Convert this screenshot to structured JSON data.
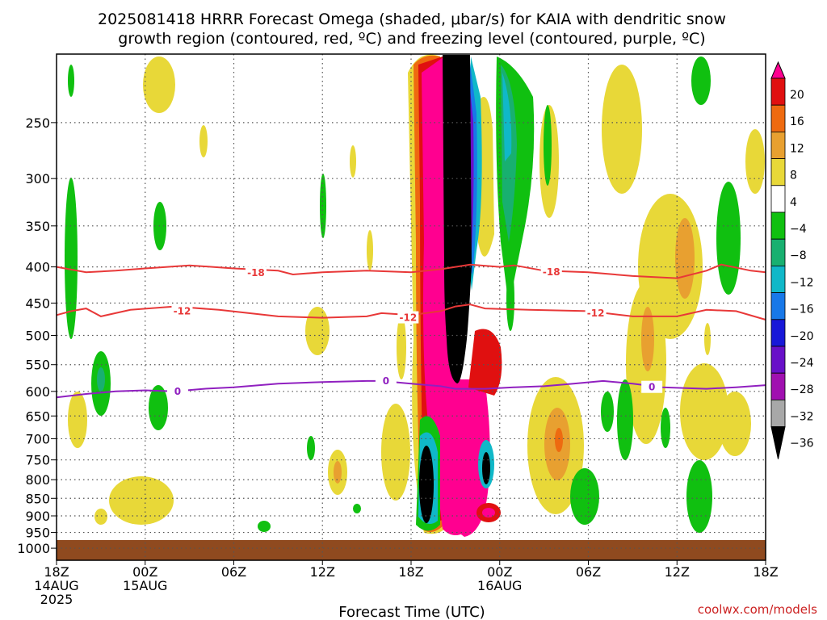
{
  "title": {
    "line1": "2025081418 HRRR Forecast Omega (shaded, μbar/s) for KAIA with dendritic snow",
    "line2": "growth region (contoured, red, ºC) and freezing level (contoured, purple, ºC)"
  },
  "credit": "coolwx.com/models",
  "chart_data": {
    "type": "heatmap",
    "title": "2025081418 HRRR Forecast Omega (shaded, μbar/s) for KAIA with dendritic snow growth region (contoured, red, ºC) and freezing level (contoured, purple, ºC)",
    "xlabel": "Forecast Time (UTC)",
    "ylabel": "",
    "x_range_hours": [
      0,
      48
    ],
    "x_ticks": [
      {
        "h": 0,
        "l1": "18Z",
        "l2": "14AUG",
        "l3": "2025"
      },
      {
        "h": 6,
        "l1": "00Z",
        "l2": "15AUG",
        "l3": ""
      },
      {
        "h": 12,
        "l1": "06Z",
        "l2": "",
        "l3": ""
      },
      {
        "h": 18,
        "l1": "12Z",
        "l2": "",
        "l3": ""
      },
      {
        "h": 24,
        "l1": "18Z",
        "l2": "",
        "l3": ""
      },
      {
        "h": 30,
        "l1": "00Z",
        "l2": "16AUG",
        "l3": ""
      },
      {
        "h": 36,
        "l1": "06Z",
        "l2": "",
        "l3": ""
      },
      {
        "h": 42,
        "l1": "12Z",
        "l2": "",
        "l3": ""
      },
      {
        "h": 48,
        "l1": "18Z",
        "l2": "",
        "l3": ""
      }
    ],
    "y_axis": "pressure (log scale, reversed)",
    "y_range": [
      1040,
      200
    ],
    "y_ticks": [
      250,
      300,
      350,
      400,
      450,
      500,
      550,
      600,
      650,
      700,
      750,
      800,
      850,
      900,
      950,
      1000
    ],
    "grid": true,
    "surface_band_color": "#8f4a1f",
    "colorbar": {
      "labels": [
        "20",
        "16",
        "12",
        "8",
        "4",
        "−4",
        "−8",
        "−12",
        "−16",
        "−20",
        "−24",
        "−28",
        "−32",
        "−36"
      ],
      "colors": [
        "#ff0090",
        "#e01010",
        "#ee6a10",
        "#e8a030",
        "#e8d838",
        "#ffffff",
        "#10c010",
        "#18b070",
        "#10b8c8",
        "#1878e8",
        "#1818d8",
        "#6810c8",
        "#a010b0",
        "#a8a8a8",
        "#000000"
      ]
    },
    "contours": [
      {
        "label": "-18",
        "color": "#e83838",
        "points": [
          [
            0,
            400
          ],
          [
            2,
            407
          ],
          [
            4,
            405
          ],
          [
            6,
            402
          ],
          [
            9,
            398
          ],
          [
            12,
            402
          ],
          [
            15,
            405
          ],
          [
            16,
            410
          ],
          [
            18,
            407
          ],
          [
            21,
            405
          ],
          [
            24,
            407
          ],
          [
            26,
            403
          ],
          [
            28,
            397
          ],
          [
            30,
            400
          ],
          [
            31,
            398
          ],
          [
            33,
            405
          ],
          [
            36,
            407
          ],
          [
            39,
            412
          ],
          [
            42,
            415
          ],
          [
            44,
            405
          ],
          [
            45,
            397
          ],
          [
            47,
            405
          ],
          [
            48,
            407
          ]
        ],
        "label_at": [
          [
            13.5,
            408
          ],
          [
            33.5,
            407
          ]
        ]
      },
      {
        "label": "-12",
        "color": "#e83838",
        "points": [
          [
            0,
            468
          ],
          [
            1,
            462
          ],
          [
            2,
            458
          ],
          [
            3,
            470
          ],
          [
            5,
            460
          ],
          [
            8,
            455
          ],
          [
            11,
            460
          ],
          [
            15,
            470
          ],
          [
            18,
            472
          ],
          [
            21,
            470
          ],
          [
            22,
            465
          ],
          [
            24,
            468
          ],
          [
            26,
            462
          ],
          [
            27,
            455
          ],
          [
            28,
            452
          ],
          [
            29,
            458
          ],
          [
            32,
            460
          ],
          [
            36,
            462
          ],
          [
            39,
            470
          ],
          [
            42,
            470
          ],
          [
            44,
            460
          ],
          [
            46,
            462
          ],
          [
            48,
            475
          ]
        ],
        "label_at": [
          [
            8.5,
            462
          ],
          [
            23.8,
            472
          ],
          [
            36.5,
            465
          ]
        ]
      },
      {
        "label": "0",
        "color": "#9020c0",
        "points": [
          [
            0,
            612
          ],
          [
            2,
            605
          ],
          [
            4,
            600
          ],
          [
            6,
            598
          ],
          [
            8,
            600
          ],
          [
            10,
            595
          ],
          [
            12,
            592
          ],
          [
            15,
            585
          ],
          [
            18,
            582
          ],
          [
            21,
            580
          ],
          [
            22,
            580
          ],
          [
            24,
            585
          ],
          [
            26,
            590
          ],
          [
            27,
            595
          ],
          [
            29,
            595
          ],
          [
            31,
            592
          ],
          [
            33,
            590
          ],
          [
            35,
            585
          ],
          [
            37,
            580
          ],
          [
            39,
            585
          ],
          [
            41,
            592
          ],
          [
            44,
            595
          ],
          [
            46,
            592
          ],
          [
            48,
            588
          ]
        ],
        "label_at": [
          [
            8.2,
            600
          ],
          [
            22.3,
            580
          ],
          [
            40.3,
            592
          ]
        ]
      }
    ]
  }
}
